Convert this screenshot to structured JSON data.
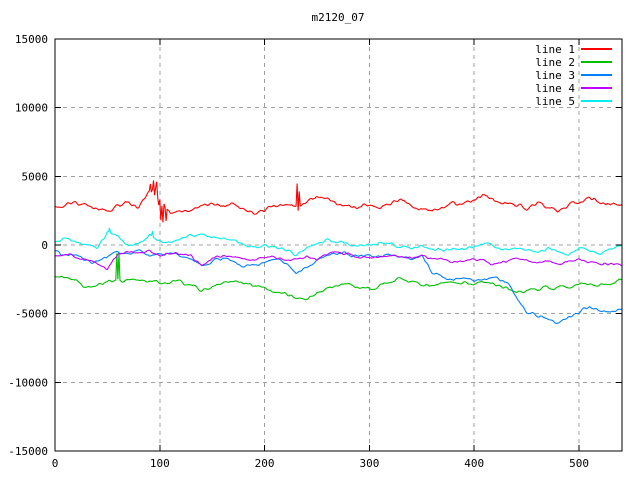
{
  "chart_data": {
    "type": "line",
    "title": "m2120_07",
    "xlabel": "",
    "ylabel": "",
    "xlim": [
      0,
      541
    ],
    "ylim": [
      -15000,
      15000
    ],
    "x_ticks": [
      0,
      100,
      200,
      300,
      400,
      500
    ],
    "y_ticks": [
      -15000,
      -10000,
      -5000,
      0,
      5000,
      10000,
      15000
    ],
    "grid": true,
    "grid_style": "gray-dashed",
    "legend": {
      "position": "top-right",
      "entries": [
        "line 1",
        "line 2",
        "line 3",
        "line 4",
        "line 5"
      ]
    },
    "colors": {
      "background": "#ffffff",
      "border": "#000000",
      "text": "#000000",
      "grid": "#a0a0a0"
    },
    "x_sample_start": 0,
    "x_sample_step": 10,
    "series": [
      {
        "name": "line 1",
        "color": "#ff0000",
        "values": [
          2800,
          3000,
          3150,
          2900,
          2600,
          2450,
          2800,
          3200,
          2700,
          3900,
          3300,
          2300,
          2400,
          2500,
          2900,
          3100,
          2700,
          3000,
          2600,
          2200,
          2600,
          2900,
          3000,
          2800,
          3200,
          3400,
          3300,
          3100,
          2800,
          2700,
          2900,
          2700,
          3000,
          3300,
          2900,
          2600,
          2500,
          2800,
          3100,
          2900,
          3300,
          3700,
          3200,
          3000,
          2900,
          2700,
          3000,
          2600,
          2500,
          2900,
          3200,
          3400,
          3000,
          2900,
          3000
        ],
        "spikes": [
          [
            91,
            4450
          ],
          [
            93,
            4050
          ],
          [
            94,
            4700
          ],
          [
            96,
            4150
          ],
          [
            97,
            4600
          ],
          [
            99,
            2900
          ],
          [
            101,
            1800
          ],
          [
            102,
            2850
          ],
          [
            103,
            1650
          ],
          [
            105,
            2750
          ],
          [
            106,
            1750
          ],
          [
            231,
            4480
          ],
          [
            232,
            2500
          ],
          [
            233,
            3900
          ]
        ]
      },
      {
        "name": "line 2",
        "color": "#00c000",
        "values": [
          -2250,
          -2350,
          -2500,
          -3100,
          -2900,
          -2700,
          -2600,
          -2550,
          -2500,
          -2700,
          -2800,
          -2600,
          -2700,
          -3000,
          -3300,
          -3100,
          -2800,
          -2650,
          -2750,
          -3000,
          -3150,
          -3300,
          -3550,
          -3800,
          -4000,
          -3500,
          -3200,
          -3000,
          -2900,
          -3050,
          -3150,
          -3000,
          -2700,
          -2450,
          -2700,
          -2950,
          -3050,
          -2800,
          -2700,
          -2750,
          -2800,
          -2700,
          -2900,
          -3100,
          -3400,
          -3300,
          -3200,
          -3100,
          -3150,
          -3050,
          -2800,
          -2900,
          -2950,
          -2850,
          -2600
        ],
        "spikes": [
          [
            59,
            -600
          ],
          [
            60,
            -2500
          ],
          [
            61,
            -550
          ]
        ]
      },
      {
        "name": "line 3",
        "color": "#0080ff",
        "values": [
          -450,
          -700,
          -800,
          -1100,
          -1300,
          -800,
          -500,
          -600,
          -400,
          -700,
          -800,
          -600,
          -900,
          -1100,
          -1550,
          -1200,
          -1000,
          -1200,
          -1550,
          -1500,
          -1200,
          -1000,
          -1300,
          -2050,
          -1750,
          -1200,
          -700,
          -550,
          -700,
          -900,
          -700,
          -900,
          -700,
          -800,
          -1000,
          -800,
          -2100,
          -2300,
          -2500,
          -2400,
          -2600,
          -2500,
          -2400,
          -2600,
          -3700,
          -4900,
          -5100,
          -5300,
          -5700,
          -5300,
          -4900,
          -4500,
          -4700,
          -4900,
          -4700
        ],
        "spikes": []
      },
      {
        "name": "line 4",
        "color": "#c000ff",
        "values": [
          -800,
          -650,
          -900,
          -1100,
          -1400,
          -1700,
          -700,
          -450,
          -600,
          -500,
          -700,
          -550,
          -700,
          -800,
          -1500,
          -900,
          -800,
          -900,
          -1000,
          -1100,
          -1000,
          -850,
          -1000,
          -1100,
          -900,
          -1000,
          -600,
          -500,
          -700,
          -850,
          -800,
          -900,
          -750,
          -850,
          -950,
          -800,
          -1000,
          -1100,
          -1300,
          -1200,
          -1000,
          -1200,
          -1400,
          -1200,
          -1000,
          -1100,
          -1300,
          -1200,
          -1400,
          -1250,
          -1100,
          -1250,
          -1450,
          -1350,
          -1450
        ],
        "spikes": []
      },
      {
        "name": "line 5",
        "color": "#00eeee",
        "values": [
          300,
          400,
          250,
          100,
          -150,
          900,
          700,
          -100,
          150,
          700,
          300,
          150,
          450,
          700,
          750,
          500,
          550,
          300,
          50,
          -150,
          0,
          -200,
          -400,
          -700,
          -300,
          100,
          300,
          200,
          100,
          -100,
          -50,
          150,
          100,
          -100,
          -300,
          -150,
          -250,
          -400,
          -200,
          -350,
          -100,
          150,
          -200,
          -400,
          -250,
          -350,
          -550,
          -300,
          -450,
          -600,
          -300,
          -400,
          -600,
          -250,
          -100
        ],
        "spikes": [
          [
            52,
            1240
          ],
          [
            93,
            1000
          ]
        ]
      }
    ]
  }
}
